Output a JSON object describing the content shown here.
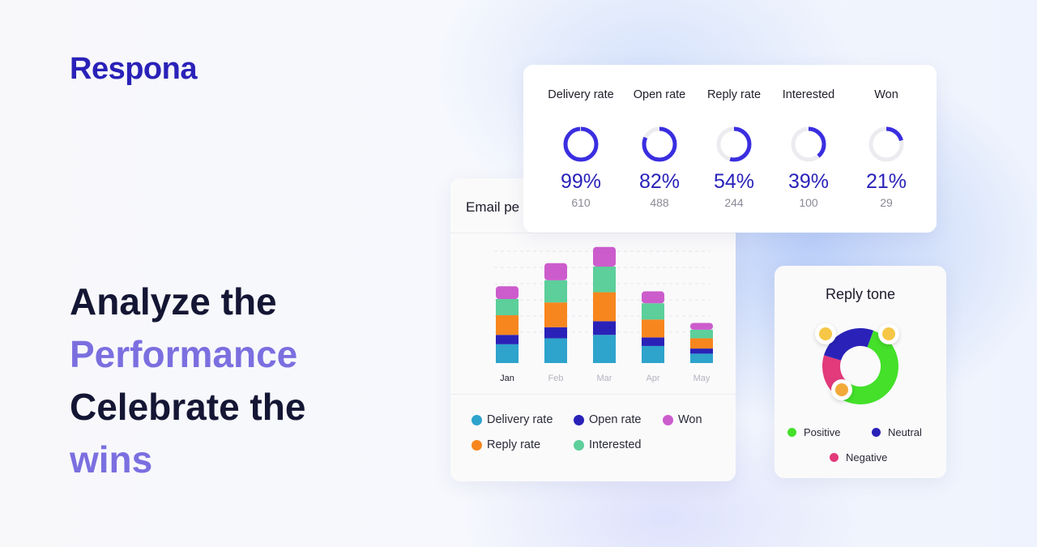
{
  "brand": {
    "name": "Respona",
    "color": "#2a22b8"
  },
  "headline": {
    "line1": "Analyze the",
    "line2": "Performance",
    "line3": "Celebrate the",
    "line4": "wins"
  },
  "metrics": [
    {
      "label": "Delivery rate",
      "percent": "99%",
      "count": "610",
      "fraction": 0.99
    },
    {
      "label": "Open rate",
      "percent": "82%",
      "count": "488",
      "fraction": 0.82
    },
    {
      "label": "Reply rate",
      "percent": "54%",
      "count": "244",
      "fraction": 0.54
    },
    {
      "label": "Interested",
      "percent": "39%",
      "count": "100",
      "fraction": 0.39
    },
    {
      "label": "Won",
      "percent": "21%",
      "count": "29",
      "fraction": 0.21
    }
  ],
  "email_card": {
    "title": "Email pe",
    "legend": [
      {
        "label": "Delivery rate",
        "color": "#2ea3cc"
      },
      {
        "label": "Open rate",
        "color": "#2a22b8"
      },
      {
        "label": "Won",
        "color": "#cc5ccc"
      },
      {
        "label": "Reply rate",
        "color": "#f7861f"
      },
      {
        "label": "Interested",
        "color": "#5ccf9a"
      }
    ]
  },
  "chart_data": {
    "type": "bar",
    "stacked": true,
    "categories": [
      "Jan",
      "Feb",
      "Mar",
      "Apr",
      "May"
    ],
    "active_category": "Jan",
    "series": [
      {
        "name": "Delivery rate",
        "color": "#2ea3cc",
        "values": [
          22,
          29,
          33,
          20,
          11
        ]
      },
      {
        "name": "Open rate",
        "color": "#2a22b8",
        "values": [
          11,
          13,
          16,
          10,
          6
        ]
      },
      {
        "name": "Reply rate",
        "color": "#f7861f",
        "values": [
          23,
          29,
          34,
          21,
          12
        ]
      },
      {
        "name": "Interested",
        "color": "#5ccf9a",
        "values": [
          19,
          26,
          30,
          19,
          10
        ]
      },
      {
        "name": "Won",
        "color": "#cc5ccc",
        "values": [
          15,
          20,
          23,
          14,
          8
        ]
      }
    ],
    "ylim": [
      0,
      150
    ],
    "grid": true
  },
  "reply_tone": {
    "title": "Reply tone",
    "segments": [
      {
        "name": "Positive",
        "color": "#44e02a",
        "fraction": 0.56
      },
      {
        "name": "Negative",
        "color": "#e23a7a",
        "fraction": 0.18
      },
      {
        "name": "Neutral",
        "color": "#2a22b8",
        "fraction": 0.26
      }
    ],
    "legend": [
      {
        "label": "Positive",
        "color": "#44e02a"
      },
      {
        "label": "Neutral",
        "color": "#2a22b8"
      },
      {
        "label": "Negative",
        "color": "#e23a7a"
      }
    ],
    "emojis": [
      "neutral-face-icon",
      "smiling-face-icon",
      "angry-face-icon"
    ]
  }
}
